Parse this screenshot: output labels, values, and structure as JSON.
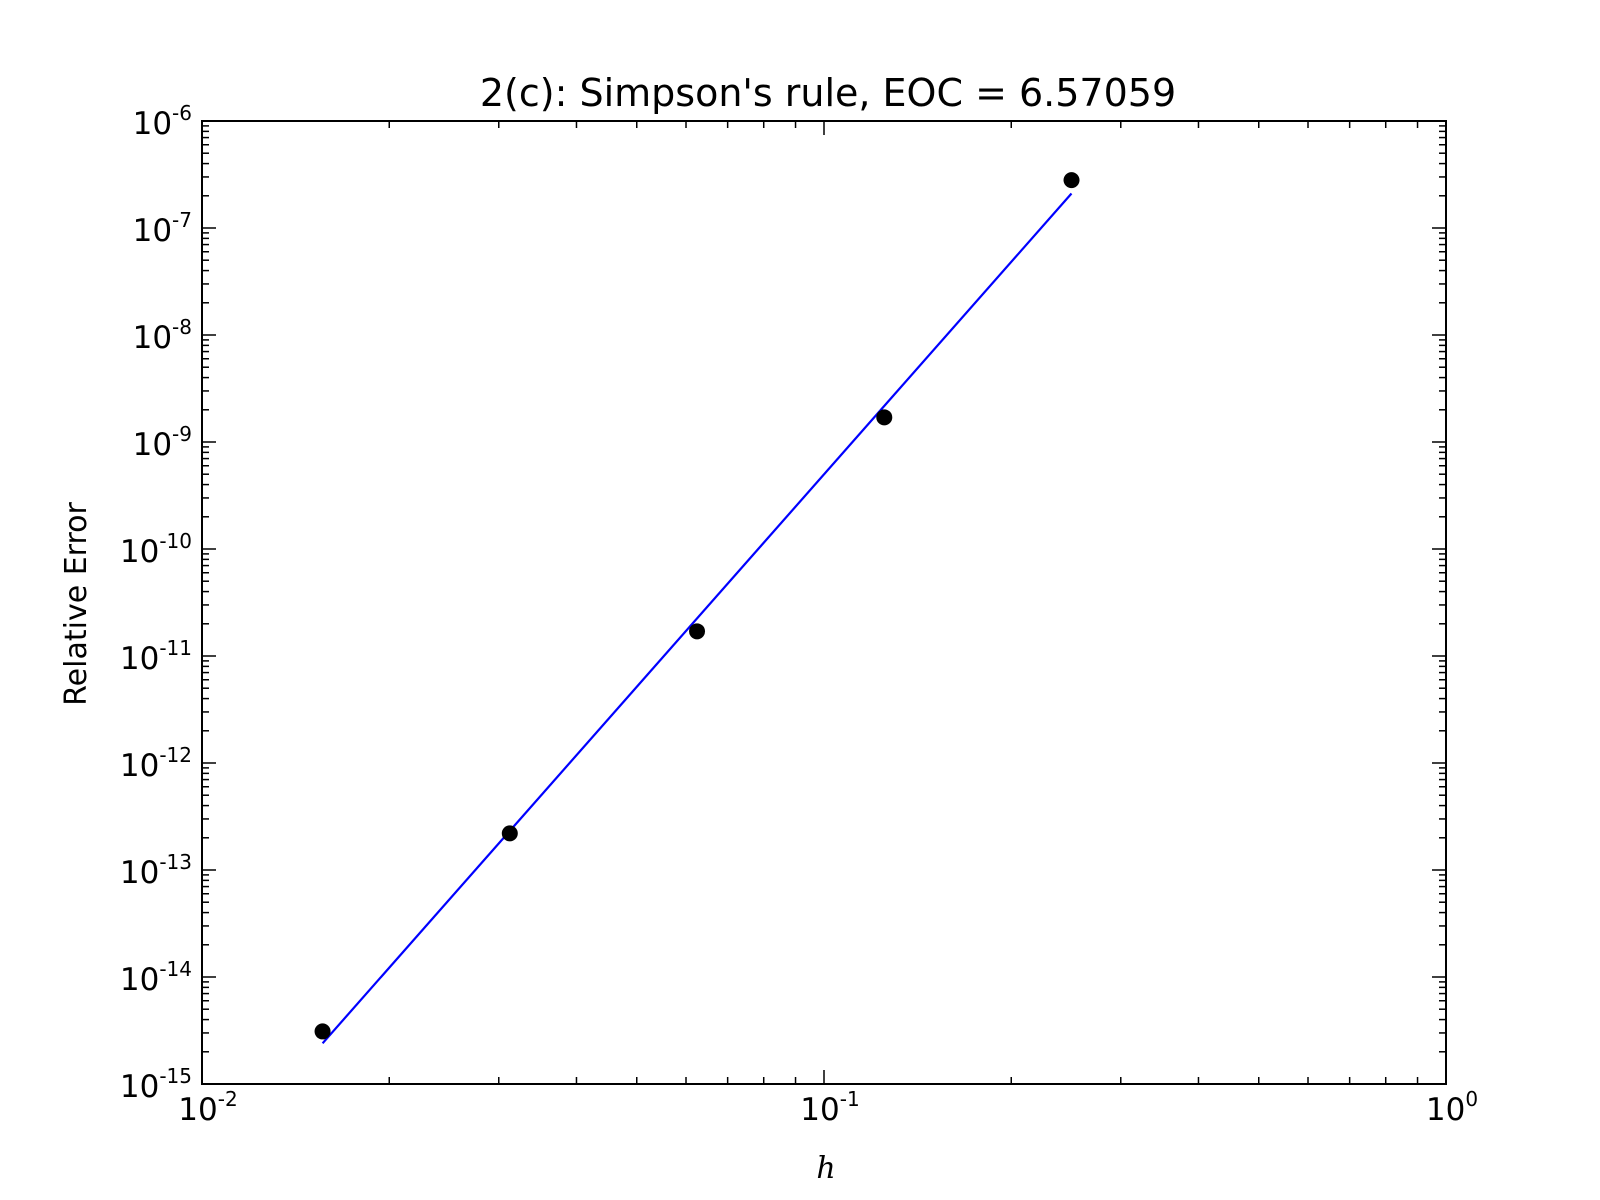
{
  "chart_data": {
    "type": "scatter",
    "title": "2(c): Simpson's rule, EOC = 6.57059",
    "xlabel": "h",
    "ylabel": "Relative Error",
    "xscale": "log",
    "yscale": "log",
    "xlim": [
      0.01,
      1
    ],
    "ylim": [
      1e-15,
      1e-06
    ],
    "grid": false,
    "x_ticks": [
      {
        "base": "10",
        "exp": "-2"
      },
      {
        "base": "10",
        "exp": "-1"
      },
      {
        "base": "10",
        "exp": "0"
      }
    ],
    "y_ticks": [
      {
        "base": "10",
        "exp": "-15"
      },
      {
        "base": "10",
        "exp": "-14"
      },
      {
        "base": "10",
        "exp": "-13"
      },
      {
        "base": "10",
        "exp": "-12"
      },
      {
        "base": "10",
        "exp": "-11"
      },
      {
        "base": "10",
        "exp": "-10"
      },
      {
        "base": "10",
        "exp": "-9"
      },
      {
        "base": "10",
        "exp": "-8"
      },
      {
        "base": "10",
        "exp": "-7"
      },
      {
        "base": "10",
        "exp": "-6"
      }
    ],
    "series": [
      {
        "kind": "points",
        "color": "#000000",
        "x": [
          0.015625,
          0.03125,
          0.0625,
          0.125,
          0.25
        ],
        "y": [
          3.1e-15,
          2.2e-13,
          1.7e-11,
          1.7e-09,
          2.8e-07
        ]
      },
      {
        "kind": "line",
        "color": "#0000ff",
        "x": [
          0.015625,
          0.25
        ],
        "y": [
          2.4e-15,
          2.1e-07
        ]
      }
    ]
  }
}
